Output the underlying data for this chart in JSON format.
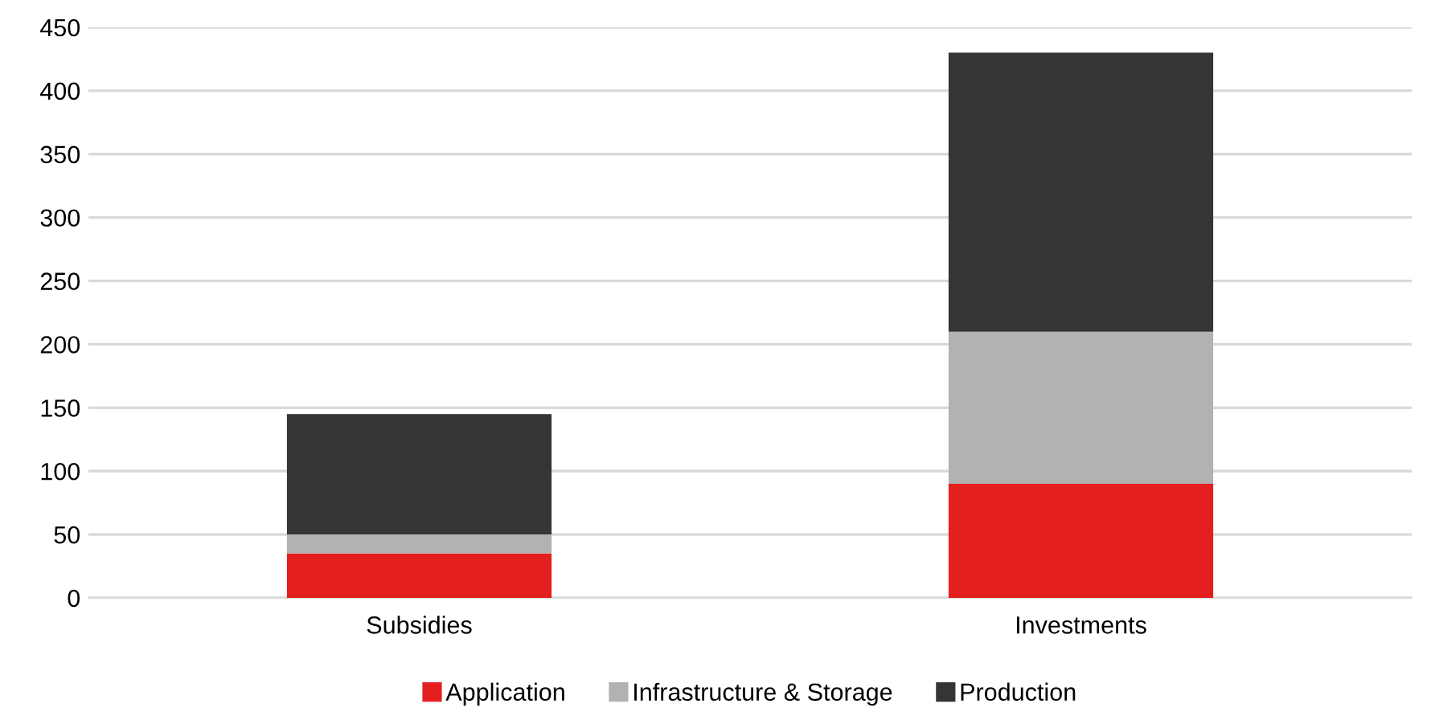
{
  "chart_data": {
    "type": "bar",
    "stacked": true,
    "categories": [
      "Subsidies",
      "Investments"
    ],
    "series": [
      {
        "name": "Application",
        "color": "#e41f1f",
        "values": [
          35,
          90
        ]
      },
      {
        "name": "Infrastructure & Storage",
        "color": "#b2b2b2",
        "values": [
          15,
          120
        ]
      },
      {
        "name": "Production",
        "color": "#353535",
        "values": [
          95,
          220
        ]
      }
    ],
    "ylim": [
      0,
      450
    ],
    "yticks": [
      0,
      50,
      100,
      150,
      200,
      250,
      300,
      350,
      400,
      450
    ],
    "grid": "y",
    "legend": "bottom"
  }
}
